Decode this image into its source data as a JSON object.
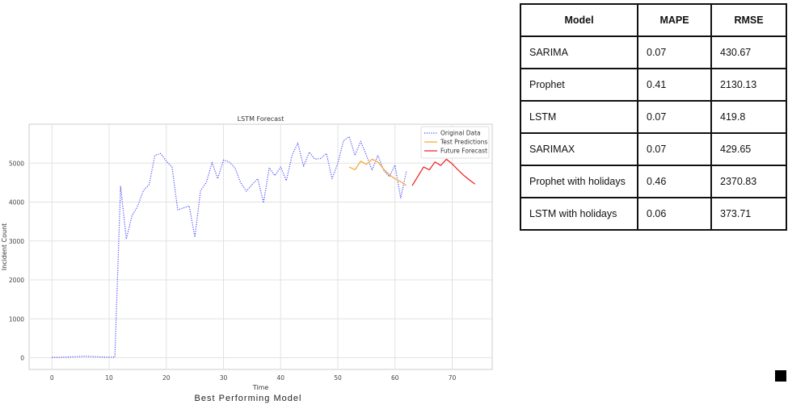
{
  "chart_data": {
    "type": "line",
    "title": "LSTM Forecast",
    "xlabel": "Time",
    "ylabel": "Incident Count",
    "xlim": [
      -4,
      77
    ],
    "ylim": [
      -300,
      6000
    ],
    "xticks": [
      0,
      10,
      20,
      30,
      40,
      50,
      60,
      70
    ],
    "yticks": [
      0,
      1000,
      2000,
      3000,
      4000,
      5000
    ],
    "grid": true,
    "legend_position": "top-right",
    "series": [
      {
        "name": "Original Data",
        "color": "#4b4bff",
        "style": "dotted",
        "x": [
          0,
          1,
          2,
          3,
          4,
          5,
          6,
          7,
          8,
          9,
          10,
          11,
          12,
          13,
          14,
          15,
          16,
          17,
          18,
          19,
          20,
          21,
          22,
          23,
          24,
          25,
          26,
          27,
          28,
          29,
          30,
          31,
          32,
          33,
          34,
          35,
          36,
          37,
          38,
          39,
          40,
          41,
          42,
          43,
          44,
          45,
          46,
          47,
          48,
          49,
          50,
          51,
          52,
          53,
          54,
          55,
          56,
          57,
          58,
          59,
          60,
          61,
          62
        ],
        "y": [
          10,
          10,
          15,
          20,
          25,
          35,
          40,
          30,
          25,
          20,
          15,
          15,
          4400,
          3050,
          3650,
          3900,
          4300,
          4450,
          5200,
          5250,
          5050,
          4900,
          3800,
          3850,
          3900,
          3100,
          4300,
          4500,
          5020,
          4600,
          5080,
          5030,
          4880,
          4500,
          4280,
          4450,
          4600,
          3980,
          4880,
          4680,
          4900,
          4550,
          5200,
          5520,
          4920,
          5280,
          5100,
          5120,
          5250,
          4600,
          5000,
          5580,
          5680,
          5200,
          5560,
          5200,
          4820,
          5200,
          4820,
          4650,
          4950,
          4100,
          4800
        ]
      },
      {
        "name": "Test Predictions",
        "color": "#f4a52c",
        "style": "solid",
        "x": [
          52,
          53,
          54,
          55,
          56,
          57,
          58,
          59,
          60,
          61,
          62
        ],
        "y": [
          4900,
          4830,
          5050,
          4970,
          5100,
          5030,
          4850,
          4700,
          4600,
          4520,
          4430
        ]
      },
      {
        "name": "Future Forecast",
        "color": "#e81c1c",
        "style": "solid",
        "x": [
          63,
          64,
          65,
          66,
          67,
          68,
          69,
          70,
          71,
          72,
          73,
          74
        ],
        "y": [
          4420,
          4660,
          4900,
          4830,
          5030,
          4940,
          5100,
          4980,
          4830,
          4690,
          4570,
          4460
        ]
      }
    ]
  },
  "caption": "Best Performing Model",
  "table": {
    "headers": [
      "Model",
      "MAPE",
      "RMSE"
    ],
    "rows": [
      [
        "SARIMA",
        "0.07",
        "430.67"
      ],
      [
        "Prophet",
        "0.41",
        "2130.13"
      ],
      [
        "LSTM",
        "0.07",
        "419.8"
      ],
      [
        "SARIMAX",
        "0.07",
        "429.65"
      ],
      [
        "Prophet with holidays",
        "0.46",
        "2370.83"
      ],
      [
        "LSTM with holidays",
        "0.06",
        "373.71"
      ]
    ]
  }
}
